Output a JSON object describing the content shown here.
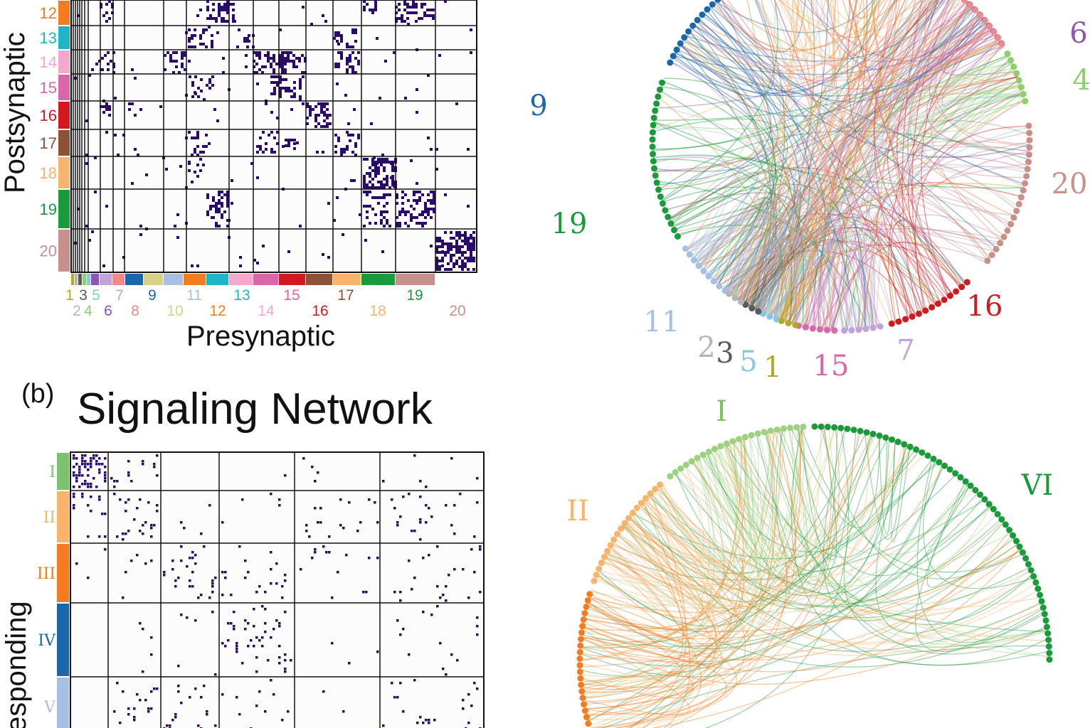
{
  "panel_b": {
    "letter": "(b)",
    "title": "Signaling Network"
  },
  "panel_a_matrix": {
    "y_axis_label": "Postsynaptic",
    "x_axis_label": "Presynaptic",
    "row_groups": [
      {
        "label": "12",
        "color": "#f47c20"
      },
      {
        "label": "13",
        "color": "#1fb4c8"
      },
      {
        "label": "14",
        "color": "#f6a8cc"
      },
      {
        "label": "15",
        "color": "#d866a8"
      },
      {
        "label": "16",
        "color": "#d2191f"
      },
      {
        "label": "17",
        "color": "#8c5238"
      },
      {
        "label": "18",
        "color": "#f7b46a"
      },
      {
        "label": "19",
        "color": "#1b9a3c"
      },
      {
        "label": "20",
        "color": "#c8908a"
      }
    ],
    "col_groups": [
      {
        "label": "1",
        "color": "#b5a722"
      },
      {
        "label": "2",
        "color": "#b5b5b5"
      },
      {
        "label": "3",
        "color": "#5a5a5a"
      },
      {
        "label": "4",
        "color": "#8ccf6c"
      },
      {
        "label": "5",
        "color": "#86c8e0"
      },
      {
        "label": "6",
        "color": "#8f55b0"
      },
      {
        "label": "7",
        "color": "#c2a3d8"
      },
      {
        "label": "8",
        "color": "#f0898a"
      },
      {
        "label": "9",
        "color": "#1966aa"
      },
      {
        "label": "10",
        "color": "#d9cf8a"
      },
      {
        "label": "11",
        "color": "#a6bfe3"
      },
      {
        "label": "12",
        "color": "#f47c20"
      },
      {
        "label": "13",
        "color": "#1fb4c8"
      },
      {
        "label": "14",
        "color": "#f6a8cc"
      },
      {
        "label": "15",
        "color": "#d866a8"
      },
      {
        "label": "16",
        "color": "#d2191f"
      },
      {
        "label": "17",
        "color": "#8c5238"
      },
      {
        "label": "18",
        "color": "#f7b46a"
      },
      {
        "label": "19",
        "color": "#1b9a3c"
      },
      {
        "label": "20",
        "color": "#c8908a"
      }
    ]
  },
  "panel_a_circle": {
    "labels": [
      {
        "text": "6",
        "color": "#8f55b0"
      },
      {
        "text": "4",
        "color": "#8ccf6c"
      },
      {
        "text": "9",
        "color": "#1966aa"
      },
      {
        "text": "20",
        "color": "#c8908a"
      },
      {
        "text": "19",
        "color": "#1b9a3c"
      },
      {
        "text": "16",
        "color": "#d2191f"
      },
      {
        "text": "11",
        "color": "#a6bfe3"
      },
      {
        "text": "7",
        "color": "#c2a3d8"
      },
      {
        "text": "2",
        "color": "#b5b5b5"
      },
      {
        "text": "3",
        "color": "#5a5a5a"
      },
      {
        "text": "5",
        "color": "#86c8e0"
      },
      {
        "text": "1",
        "color": "#b5a722"
      },
      {
        "text": "15",
        "color": "#d866a8"
      }
    ]
  },
  "panel_b_matrix": {
    "y_axis_label": "esponding",
    "row_groups": [
      {
        "label": "I",
        "color": "#7cc26a"
      },
      {
        "label": "II",
        "color": "#f7b46a"
      },
      {
        "label": "III",
        "color": "#f47c20"
      },
      {
        "label": "IV",
        "color": "#1966aa"
      },
      {
        "label": "V",
        "color": "#a6bfe3"
      }
    ]
  },
  "panel_b_circle": {
    "labels": [
      {
        "text": "I",
        "color": "#7cc26a"
      },
      {
        "text": "II",
        "color": "#f7b46a"
      },
      {
        "text": "VI",
        "color": "#1b9a3c"
      }
    ]
  }
}
